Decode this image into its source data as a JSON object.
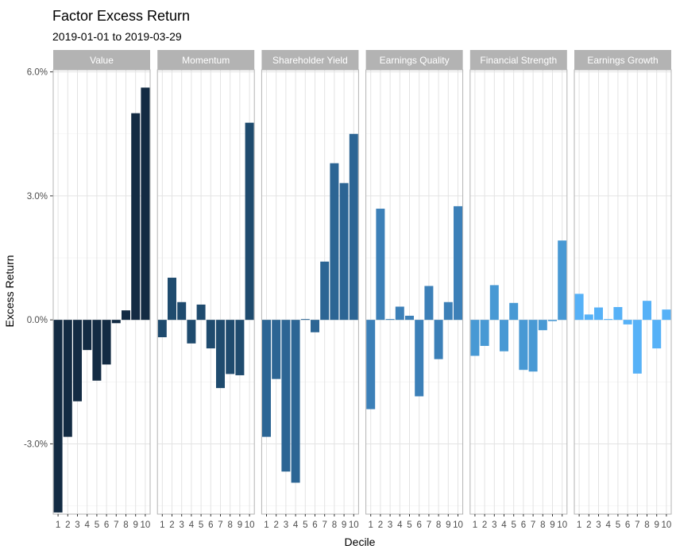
{
  "chart_data": {
    "type": "bar",
    "title": "Factor Excess Return",
    "subtitle": "2019-01-01 to 2019-03-29",
    "xlabel": "Decile",
    "ylabel": "Excess Return",
    "ylim": [
      -0.047,
      0.0605
    ],
    "yticks": [
      -0.03,
      0.0,
      0.03,
      0.06
    ],
    "ytick_labels": [
      "-3.0%",
      "0.0%",
      "3.0%",
      "6.0%"
    ],
    "categories": [
      "1",
      "2",
      "3",
      "4",
      "5",
      "6",
      "7",
      "8",
      "9",
      "10"
    ],
    "grid": true,
    "facet_strip_color": "#b3b3b3",
    "series": [
      {
        "name": "Value",
        "color": "#132b43",
        "values": [
          -0.0466,
          -0.0283,
          -0.0197,
          -0.0073,
          -0.0147,
          -0.0108,
          -0.0008,
          0.0023,
          0.05,
          0.0562
        ]
      },
      {
        "name": "Momentum",
        "color": "#1f4b6e",
        "values": [
          -0.0042,
          0.0102,
          0.0043,
          -0.0057,
          0.0037,
          -0.0069,
          -0.0165,
          -0.0131,
          -0.0134,
          0.0477
        ]
      },
      {
        "name": "Shareholder Yield",
        "color": "#2c6594",
        "values": [
          -0.0283,
          -0.0143,
          -0.0367,
          -0.0394,
          0.0002,
          -0.003,
          0.0141,
          0.0379,
          0.0331,
          0.045
        ]
      },
      {
        "name": "Earnings Quality",
        "color": "#3c80b8",
        "values": [
          -0.0216,
          0.0269,
          0.0002,
          0.0032,
          0.001,
          -0.0185,
          0.0082,
          -0.0095,
          0.0043,
          0.0275
        ]
      },
      {
        "name": "Financial Strength",
        "color": "#4899d4",
        "values": [
          -0.0087,
          -0.0063,
          0.0084,
          -0.0076,
          0.0041,
          -0.0121,
          -0.0125,
          -0.0025,
          -0.0003,
          0.0192
        ]
      },
      {
        "name": "Earnings Growth",
        "color": "#56b1f7",
        "values": [
          0.0063,
          0.0013,
          0.003,
          0.0002,
          0.0031,
          -0.0011,
          -0.013,
          0.0046,
          -0.0069,
          0.0025
        ]
      }
    ]
  }
}
